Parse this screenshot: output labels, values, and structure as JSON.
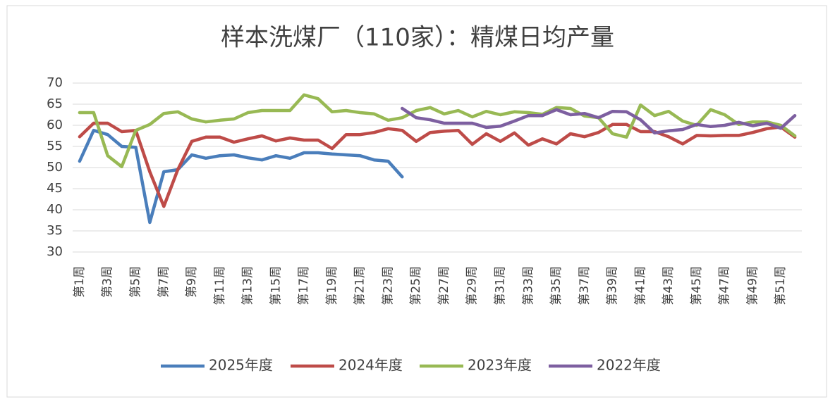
{
  "chart_data": {
    "type": "line",
    "title": "样本洗煤厂（110家）：精煤日均产量",
    "categories": [
      "第1周",
      null,
      "第3周",
      null,
      "第5周",
      null,
      "第7周",
      null,
      "第9周",
      null,
      "第11周",
      null,
      "第13周",
      null,
      "第15周",
      null,
      "第17周",
      null,
      "第19周",
      null,
      "第21周",
      null,
      "第23周",
      null,
      "第25周",
      null,
      "第27周",
      null,
      "第29周",
      null,
      "第31周",
      null,
      "第33周",
      null,
      "第35周",
      null,
      "第37周",
      null,
      "第39周",
      null,
      "第41周",
      null,
      "第43周",
      null,
      "第45周",
      null,
      "第47周",
      null,
      "第49周",
      null,
      "第51周",
      null
    ],
    "series": [
      {
        "name": "2025年度",
        "color": "#4a7ebb",
        "values": [
          51.5,
          58.8,
          57.8,
          55,
          54.8,
          37,
          49,
          49.5,
          53,
          52.2,
          52.8,
          53,
          52.3,
          51.8,
          52.8,
          52.2,
          53.5,
          53.5,
          53.2,
          53,
          52.8,
          51.8,
          51.5,
          47.8,
          null,
          null,
          null,
          null,
          null,
          null,
          null,
          null,
          null,
          null,
          null,
          null,
          null,
          null,
          null,
          null,
          null,
          null,
          null,
          null,
          null,
          null,
          null,
          null,
          null,
          null,
          null,
          null
        ]
      },
      {
        "name": "2024年度",
        "color": "#be4b48",
        "values": [
          57.3,
          60.5,
          60.5,
          58.5,
          58.8,
          49,
          40.8,
          49.5,
          56.2,
          57.2,
          57.2,
          56,
          56.8,
          57.5,
          56.3,
          57,
          56.5,
          56.5,
          54.5,
          57.8,
          57.8,
          58.3,
          59.2,
          58.8,
          56.2,
          58.3,
          58.6,
          58.8,
          55.5,
          58,
          56.2,
          58.2,
          55.3,
          56.8,
          55.6,
          58,
          57.3,
          58.3,
          60.2,
          60.2,
          58.5,
          58.5,
          57.3,
          55.6,
          57.6,
          57.5,
          57.6,
          57.6,
          58.3,
          59.2,
          59.6,
          57.2
        ]
      },
      {
        "name": "2023年度",
        "color": "#98b954",
        "values": [
          63,
          63,
          52.8,
          50.2,
          58.8,
          60.2,
          62.8,
          63.2,
          61.5,
          60.8,
          61.2,
          61.5,
          63,
          63.5,
          63.5,
          63.5,
          67.2,
          66.3,
          63.2,
          63.5,
          63,
          62.7,
          61.2,
          61.8,
          63.5,
          64.2,
          62.7,
          63.5,
          62,
          63.3,
          62.5,
          63.2,
          63,
          62.6,
          64.2,
          64,
          62.2,
          61.8,
          58,
          57.2,
          64.8,
          62.3,
          63.3,
          61,
          60,
          63.7,
          62.5,
          60.2,
          60.8,
          60.8,
          60,
          57.5
        ]
      },
      {
        "name": "2022年度",
        "color": "#7d5fa0",
        "values": [
          null,
          null,
          null,
          null,
          null,
          null,
          null,
          null,
          null,
          null,
          null,
          null,
          null,
          null,
          null,
          null,
          null,
          null,
          null,
          null,
          null,
          null,
          null,
          64,
          61.8,
          61.3,
          60.5,
          60.5,
          60.5,
          59.5,
          59.8,
          61,
          62.3,
          62.3,
          63.7,
          62.5,
          62.8,
          61.8,
          63.3,
          63.2,
          61.3,
          58.2,
          58.7,
          59,
          60.2,
          59.7,
          60,
          60.7,
          59.9,
          60.5,
          59.3,
          62.3
        ]
      }
    ],
    "ylim": [
      30,
      70
    ],
    "yticks": [
      30,
      35,
      40,
      45,
      50,
      55,
      60,
      65,
      70
    ],
    "grid": true,
    "legend": "bottom"
  }
}
